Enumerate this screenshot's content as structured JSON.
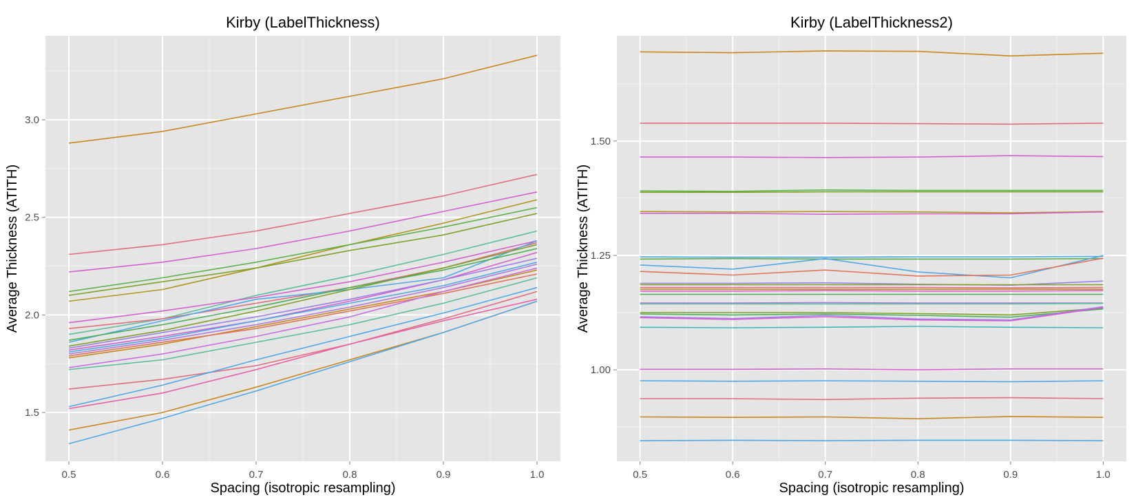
{
  "chart_data": [
    {
      "type": "line",
      "title": "Kirby (LabelThickness)",
      "xlabel": "Spacing (isotropic resampling)",
      "ylabel": "Average Thickness (ATITH)",
      "grid": true,
      "legend": "none",
      "xlim": [
        0.475,
        1.025
      ],
      "ylim": [
        1.25,
        3.43
      ],
      "x": [
        0.5,
        0.6,
        0.7,
        0.8,
        0.9,
        1.0
      ],
      "x_ticks": [
        "0.5",
        "0.6",
        "0.7",
        "0.8",
        "0.9",
        "1.0"
      ],
      "y_ticks": [
        1.5,
        2.0,
        2.5,
        3.0
      ],
      "y_tick_labels": [
        "1.5",
        "2.0",
        "2.5",
        "3.0"
      ],
      "series": [
        {
          "color": "#C8861C",
          "values": [
            2.88,
            2.94,
            3.03,
            3.12,
            3.21,
            3.33
          ]
        },
        {
          "color": "#E06D80",
          "values": [
            2.31,
            2.36,
            2.43,
            2.52,
            2.61,
            2.72
          ]
        },
        {
          "color": "#D65FD0",
          "values": [
            2.22,
            2.27,
            2.34,
            2.43,
            2.53,
            2.63
          ]
        },
        {
          "color": "#B0951E",
          "values": [
            2.07,
            2.13,
            2.24,
            2.36,
            2.47,
            2.59
          ]
        },
        {
          "color": "#5CB248",
          "values": [
            2.12,
            2.19,
            2.27,
            2.36,
            2.45,
            2.55
          ]
        },
        {
          "color": "#7EA126",
          "values": [
            2.1,
            2.17,
            2.24,
            2.33,
            2.41,
            2.52
          ]
        },
        {
          "color": "#5CBF9C",
          "values": [
            1.9,
            1.98,
            2.1,
            2.2,
            2.31,
            2.43
          ]
        },
        {
          "color": "#D65FD0",
          "values": [
            1.96,
            2.02,
            2.09,
            2.17,
            2.27,
            2.38
          ]
        },
        {
          "color": "#E06D80",
          "values": [
            1.93,
            1.98,
            2.06,
            2.14,
            2.24,
            2.37
          ]
        },
        {
          "color": "#4FA7E8",
          "values": [
            1.86,
            1.97,
            2.08,
            2.13,
            2.19,
            2.38
          ]
        },
        {
          "color": "#7EA126",
          "values": [
            1.84,
            1.92,
            2.02,
            2.13,
            2.24,
            2.36
          ]
        },
        {
          "color": "#4CAF5A",
          "values": [
            1.87,
            1.95,
            2.04,
            2.14,
            2.23,
            2.34
          ]
        },
        {
          "color": "#D65FD0",
          "values": [
            1.82,
            1.89,
            1.97,
            2.07,
            2.18,
            2.32
          ]
        },
        {
          "color": "#9C7FE8",
          "values": [
            1.83,
            1.91,
            1.99,
            2.08,
            2.18,
            2.29
          ]
        },
        {
          "color": "#4FA7E8",
          "values": [
            1.81,
            1.88,
            1.97,
            2.06,
            2.15,
            2.27
          ]
        },
        {
          "color": "#B07BE0",
          "values": [
            1.8,
            1.87,
            1.95,
            2.04,
            2.14,
            2.26
          ]
        },
        {
          "color": "#C8861C",
          "values": [
            1.78,
            1.85,
            1.94,
            2.03,
            2.12,
            2.23
          ]
        },
        {
          "color": "#E0745A",
          "values": [
            1.79,
            1.86,
            1.93,
            2.02,
            2.11,
            2.21
          ]
        },
        {
          "color": "#5CBF9C",
          "values": [
            1.72,
            1.77,
            1.86,
            1.95,
            2.06,
            2.19
          ]
        },
        {
          "color": "#C86EE0",
          "values": [
            1.73,
            1.8,
            1.89,
            1.99,
            2.12,
            2.24
          ]
        },
        {
          "color": "#E06D80",
          "values": [
            1.62,
            1.67,
            1.74,
            1.85,
            1.98,
            2.12
          ]
        },
        {
          "color": "#4FA7E8",
          "values": [
            1.53,
            1.64,
            1.77,
            1.89,
            2.01,
            2.14
          ]
        },
        {
          "color": "#E85FA8",
          "values": [
            1.52,
            1.6,
            1.72,
            1.85,
            1.97,
            2.08
          ]
        },
        {
          "color": "#C8861C",
          "values": [
            1.41,
            1.5,
            1.63,
            1.77,
            1.91,
            2.07
          ]
        },
        {
          "color": "#4FA7E8",
          "values": [
            1.34,
            1.47,
            1.61,
            1.76,
            1.91,
            2.07
          ]
        }
      ]
    },
    {
      "type": "line",
      "title": "Kirby (LabelThickness2)",
      "xlabel": "Spacing (isotropic resampling)",
      "ylabel": "Average Thickness (ATITH)",
      "grid": true,
      "legend": "none",
      "xlim": [
        0.475,
        1.025
      ],
      "ylim": [
        0.8,
        1.73
      ],
      "x": [
        0.5,
        0.6,
        0.7,
        0.8,
        0.9,
        1.0
      ],
      "x_ticks": [
        "0.5",
        "0.6",
        "0.7",
        "0.8",
        "0.9",
        "1.0"
      ],
      "y_ticks": [
        1.0,
        1.25,
        1.5
      ],
      "y_tick_labels": [
        "1.00",
        "1.25",
        "1.50"
      ],
      "series": [
        {
          "color": "#C8861C",
          "values": [
            1.695,
            1.693,
            1.697,
            1.696,
            1.686,
            1.692
          ]
        },
        {
          "color": "#E06D80",
          "values": [
            1.539,
            1.539,
            1.539,
            1.538,
            1.537,
            1.539
          ]
        },
        {
          "color": "#D65FD0",
          "values": [
            1.465,
            1.465,
            1.464,
            1.465,
            1.468,
            1.466
          ]
        },
        {
          "color": "#5CB248",
          "values": [
            1.391,
            1.39,
            1.393,
            1.392,
            1.392,
            1.392
          ]
        },
        {
          "color": "#7EA126",
          "values": [
            1.388,
            1.388,
            1.389,
            1.389,
            1.389,
            1.389
          ]
        },
        {
          "color": "#B0951E",
          "values": [
            1.346,
            1.345,
            1.346,
            1.345,
            1.343,
            1.346
          ]
        },
        {
          "color": "#D65FD0",
          "values": [
            1.342,
            1.342,
            1.34,
            1.341,
            1.341,
            1.345
          ]
        },
        {
          "color": "#4FA7E8",
          "values": [
            1.247,
            1.246,
            1.246,
            1.247,
            1.247,
            1.248
          ]
        },
        {
          "color": "#5CB248",
          "values": [
            1.242,
            1.243,
            1.242,
            1.242,
            1.242,
            1.243
          ]
        },
        {
          "color": "#4FA7E8",
          "values": [
            1.229,
            1.22,
            1.243,
            1.214,
            1.201,
            1.25
          ]
        },
        {
          "color": "#E0745A",
          "values": [
            1.215,
            1.207,
            1.218,
            1.205,
            1.207,
            1.244
          ]
        },
        {
          "color": "#9C7FE8",
          "values": [
            1.189,
            1.189,
            1.19,
            1.187,
            1.185,
            1.194
          ]
        },
        {
          "color": "#7EA126",
          "values": [
            1.186,
            1.186,
            1.186,
            1.186,
            1.186,
            1.186
          ]
        },
        {
          "color": "#E06D80",
          "values": [
            1.18,
            1.18,
            1.18,
            1.18,
            1.179,
            1.18
          ]
        },
        {
          "color": "#C8861C",
          "values": [
            1.176,
            1.176,
            1.176,
            1.176,
            1.176,
            1.176
          ]
        },
        {
          "color": "#D65FD0",
          "values": [
            1.172,
            1.172,
            1.173,
            1.172,
            1.172,
            1.173
          ]
        },
        {
          "color": "#4CAF5A",
          "values": [
            1.165,
            1.165,
            1.165,
            1.165,
            1.165,
            1.165
          ]
        },
        {
          "color": "#B07BE0",
          "values": [
            1.146,
            1.146,
            1.147,
            1.146,
            1.146,
            1.146
          ]
        },
        {
          "color": "#5CBF9C",
          "values": [
            1.144,
            1.144,
            1.144,
            1.144,
            1.144,
            1.145
          ]
        },
        {
          "color": "#7EA126",
          "values": [
            1.125,
            1.125,
            1.125,
            1.123,
            1.12,
            1.135
          ]
        },
        {
          "color": "#4CAF5A",
          "values": [
            1.122,
            1.12,
            1.122,
            1.119,
            1.115,
            1.133
          ]
        },
        {
          "color": "#9C7FE8",
          "values": [
            1.116,
            1.112,
            1.119,
            1.111,
            1.109,
            1.138
          ]
        },
        {
          "color": "#D65FD0",
          "values": [
            1.114,
            1.11,
            1.116,
            1.109,
            1.107,
            1.136
          ]
        },
        {
          "color": "#3FB6B8",
          "values": [
            1.093,
            1.092,
            1.093,
            1.095,
            1.093,
            1.092
          ]
        },
        {
          "color": "#D65FD0",
          "values": [
            1.001,
            1.001,
            1.002,
            1.0,
            1.002,
            1.002
          ]
        },
        {
          "color": "#4FA7E8",
          "values": [
            0.976,
            0.975,
            0.976,
            0.975,
            0.974,
            0.976
          ]
        },
        {
          "color": "#E06D80",
          "values": [
            0.937,
            0.937,
            0.935,
            0.938,
            0.939,
            0.937
          ]
        },
        {
          "color": "#C8861C",
          "values": [
            0.897,
            0.896,
            0.897,
            0.893,
            0.898,
            0.896
          ]
        },
        {
          "color": "#4FA7E8",
          "values": [
            0.845,
            0.846,
            0.845,
            0.846,
            0.846,
            0.845
          ]
        }
      ]
    }
  ]
}
